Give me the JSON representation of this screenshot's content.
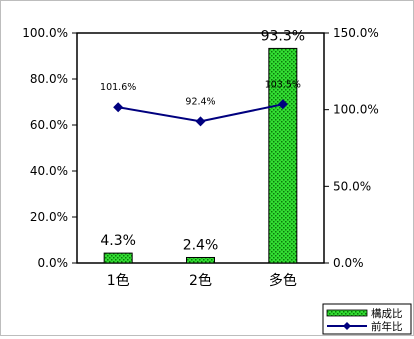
{
  "chart_data": {
    "type": "bar",
    "categories": [
      "1色",
      "2色",
      "多色"
    ],
    "series": [
      {
        "name": "構成比",
        "type": "bar",
        "axis": "left",
        "values": [
          4.3,
          2.4,
          93.3
        ],
        "labels": [
          "4.3%",
          "2.4%",
          "93.3%"
        ],
        "color": "#33dd33"
      },
      {
        "name": "前年比",
        "type": "line",
        "axis": "right",
        "values": [
          101.6,
          92.4,
          103.5
        ],
        "labels": [
          "101.6%",
          "92.4%",
          "103.5%"
        ],
        "color": "#00007f"
      }
    ],
    "y_left": {
      "ylim": [
        0,
        100
      ],
      "ticks": [
        0,
        20,
        40,
        60,
        80,
        100
      ],
      "tick_labels": [
        "0.0%",
        "20.0%",
        "40.0%",
        "60.0%",
        "80.0%",
        "100.0%"
      ]
    },
    "y_right": {
      "ylim": [
        0,
        150
      ],
      "ticks": [
        0,
        50,
        100,
        150
      ],
      "tick_labels": [
        "0.0%",
        "50.0%",
        "100.0%",
        "150.0%"
      ]
    },
    "grid": false,
    "legend_position": "bottom-right",
    "title": "",
    "xlabel": "",
    "ylabel": ""
  }
}
